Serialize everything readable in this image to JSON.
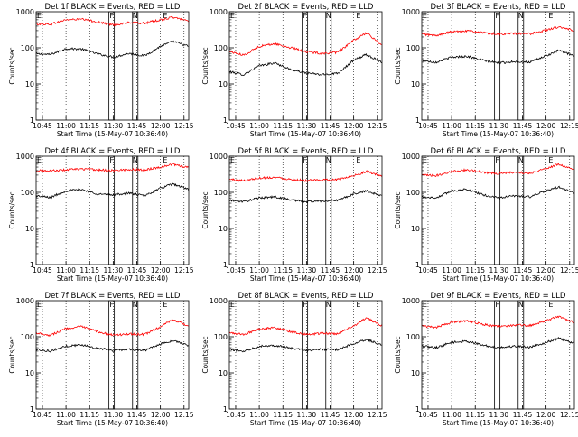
{
  "colors": {
    "events": "#000000",
    "lld": "#ff0000",
    "frame": "#000000",
    "grid": "#000000"
  },
  "chart_data": [
    {
      "type": "line",
      "title": "Det 1f BLACK = Events, RED = LLD",
      "xlabel": "Start Time (15-May-07 10:36:40)",
      "ylabel": "Counts/sec",
      "yscale": "log",
      "ylim": [
        1,
        1000
      ],
      "xlim": [
        "10:41",
        "12:18"
      ],
      "xticks": [
        "10:45",
        "11:00",
        "11:15",
        "11:30",
        "11:45",
        "12:00",
        "12:15"
      ],
      "yticks": [
        "1",
        "10",
        "100",
        "1000"
      ],
      "grid": "dotted vertical",
      "annotations": [
        {
          "label": "E",
          "x": "10:43"
        },
        {
          "label": "F",
          "x": "11:29"
        },
        {
          "label": "N",
          "x": "11:44"
        },
        {
          "label": "E",
          "x": "12:03"
        }
      ],
      "series": [
        {
          "name": "Events",
          "color": "#000000",
          "x": [
            "10:41",
            "10:50",
            "11:00",
            "11:10",
            "11:20",
            "11:30",
            "11:40",
            "11:50",
            "12:00",
            "12:08",
            "12:18"
          ],
          "values": [
            68,
            65,
            95,
            92,
            68,
            55,
            70,
            60,
            110,
            150,
            110
          ]
        },
        {
          "name": "LLD",
          "color": "#ff0000",
          "x": [
            "10:41",
            "10:50",
            "11:00",
            "11:10",
            "11:20",
            "11:30",
            "11:40",
            "11:50",
            "12:00",
            "12:08",
            "12:18"
          ],
          "values": [
            460,
            450,
            600,
            620,
            520,
            430,
            500,
            480,
            600,
            700,
            560
          ]
        }
      ]
    },
    {
      "type": "line",
      "title": "Det 2f BLACK = Events, RED = LLD",
      "xlabel": "Start Time (15-May-07 10:36:40)",
      "ylabel": "Counts/sec",
      "yscale": "log",
      "ylim": [
        1,
        1000
      ],
      "xlim": [
        "10:41",
        "12:18"
      ],
      "xticks": [
        "10:45",
        "11:00",
        "11:15",
        "11:30",
        "11:45",
        "12:00",
        "12:15"
      ],
      "yticks": [
        "1",
        "10",
        "100",
        "1000"
      ],
      "grid": "dotted vertical",
      "annotations": [
        {
          "label": "E",
          "x": "10:43"
        },
        {
          "label": "F",
          "x": "11:29"
        },
        {
          "label": "N",
          "x": "11:44"
        },
        {
          "label": "E",
          "x": "12:03"
        }
      ],
      "series": [
        {
          "name": "Events",
          "color": "#000000",
          "x": [
            "10:41",
            "10:50",
            "11:00",
            "11:10",
            "11:20",
            "11:30",
            "11:40",
            "11:50",
            "12:00",
            "12:08",
            "12:18"
          ],
          "values": [
            22,
            18,
            32,
            38,
            25,
            20,
            18,
            20,
            45,
            65,
            40
          ]
        },
        {
          "name": "LLD",
          "color": "#ff0000",
          "x": [
            "10:41",
            "10:50",
            "11:00",
            "11:10",
            "11:20",
            "11:30",
            "11:40",
            "11:50",
            "12:00",
            "12:08",
            "12:18"
          ],
          "values": [
            80,
            62,
            110,
            130,
            100,
            78,
            70,
            75,
            160,
            260,
            120
          ]
        }
      ]
    },
    {
      "type": "line",
      "title": "Det 3f BLACK = Events, RED = LLD",
      "xlabel": "Start Time (15-May-07 10:36:40)",
      "ylabel": "Counts/sec",
      "yscale": "log",
      "ylim": [
        1,
        1000
      ],
      "xlim": [
        "10:41",
        "12:18"
      ],
      "xticks": [
        "10:45",
        "11:00",
        "11:15",
        "11:30",
        "11:45",
        "12:00",
        "12:15"
      ],
      "yticks": [
        "1",
        "10",
        "100",
        "1000"
      ],
      "grid": "dotted vertical",
      "annotations": [
        {
          "label": "E",
          "x": "10:43"
        },
        {
          "label": "F",
          "x": "11:29"
        },
        {
          "label": "N",
          "x": "11:44"
        },
        {
          "label": "E",
          "x": "12:03"
        }
      ],
      "series": [
        {
          "name": "Events",
          "color": "#000000",
          "x": [
            "10:41",
            "10:50",
            "11:00",
            "11:10",
            "11:20",
            "11:30",
            "11:40",
            "11:50",
            "12:00",
            "12:08",
            "12:18"
          ],
          "values": [
            45,
            40,
            55,
            58,
            45,
            38,
            42,
            40,
            60,
            85,
            60
          ]
        },
        {
          "name": "LLD",
          "color": "#ff0000",
          "x": [
            "10:41",
            "10:50",
            "11:00",
            "11:10",
            "11:20",
            "11:30",
            "11:40",
            "11:50",
            "12:00",
            "12:08",
            "12:18"
          ],
          "values": [
            240,
            220,
            280,
            300,
            260,
            240,
            250,
            245,
            310,
            380,
            300
          ]
        }
      ]
    },
    {
      "type": "line",
      "title": "Det 4f BLACK = Events, RED = LLD",
      "xlabel": "Start Time (15-May-07 10:36:40)",
      "ylabel": "Counts/sec",
      "yscale": "log",
      "ylim": [
        1,
        1000
      ],
      "xlim": [
        "10:41",
        "12:18"
      ],
      "xticks": [
        "10:45",
        "11:00",
        "11:15",
        "11:30",
        "11:45",
        "12:00",
        "12:15"
      ],
      "yticks": [
        "1",
        "10",
        "100",
        "1000"
      ],
      "grid": "dotted vertical",
      "annotations": [
        {
          "label": "E",
          "x": "10:43"
        },
        {
          "label": "F",
          "x": "11:29"
        },
        {
          "label": "N",
          "x": "11:44"
        },
        {
          "label": "E",
          "x": "12:03"
        }
      ],
      "series": [
        {
          "name": "Events",
          "color": "#000000",
          "x": [
            "10:41",
            "10:50",
            "11:00",
            "11:10",
            "11:20",
            "11:30",
            "11:40",
            "11:50",
            "12:00",
            "12:08",
            "12:18"
          ],
          "values": [
            80,
            72,
            110,
            120,
            90,
            85,
            95,
            80,
            130,
            170,
            120
          ]
        },
        {
          "name": "LLD",
          "color": "#ff0000",
          "x": [
            "10:41",
            "10:50",
            "11:00",
            "11:10",
            "11:20",
            "11:30",
            "11:40",
            "11:50",
            "12:00",
            "12:08",
            "12:18"
          ],
          "values": [
            400,
            390,
            420,
            440,
            420,
            400,
            430,
            420,
            500,
            600,
            480
          ]
        }
      ]
    },
    {
      "type": "line",
      "title": "Det 5f BLACK = Events, RED = LLD",
      "xlabel": "Start Time (15-May-07 10:36:40)",
      "ylabel": "Counts/sec",
      "yscale": "log",
      "ylim": [
        1,
        1000
      ],
      "xlim": [
        "10:41",
        "12:18"
      ],
      "xticks": [
        "10:45",
        "11:00",
        "11:15",
        "11:30",
        "11:45",
        "12:00",
        "12:15"
      ],
      "yticks": [
        "1",
        "10",
        "100",
        "1000"
      ],
      "grid": "dotted vertical",
      "annotations": [
        {
          "label": "E",
          "x": "10:43"
        },
        {
          "label": "F",
          "x": "11:29"
        },
        {
          "label": "N",
          "x": "11:44"
        },
        {
          "label": "E",
          "x": "12:03"
        }
      ],
      "series": [
        {
          "name": "Events",
          "color": "#000000",
          "x": [
            "10:41",
            "10:50",
            "11:00",
            "11:10",
            "11:20",
            "11:30",
            "11:40",
            "11:50",
            "12:00",
            "12:08",
            "12:18"
          ],
          "values": [
            60,
            55,
            70,
            75,
            62,
            55,
            58,
            60,
            90,
            110,
            80
          ]
        },
        {
          "name": "LLD",
          "color": "#ff0000",
          "x": [
            "10:41",
            "10:50",
            "11:00",
            "11:10",
            "11:20",
            "11:30",
            "11:40",
            "11:50",
            "12:00",
            "12:08",
            "12:18"
          ],
          "values": [
            230,
            210,
            250,
            260,
            230,
            210,
            220,
            225,
            290,
            380,
            280
          ]
        }
      ]
    },
    {
      "type": "line",
      "title": "Det 6f BLACK = Events, RED = LLD",
      "xlabel": "Start Time (15-May-07 10:36:40)",
      "ylabel": "Counts/sec",
      "yscale": "log",
      "ylim": [
        1,
        1000
      ],
      "xlim": [
        "10:41",
        "12:18"
      ],
      "xticks": [
        "10:45",
        "11:00",
        "11:15",
        "11:30",
        "11:45",
        "12:00",
        "12:15"
      ],
      "yticks": [
        "1",
        "10",
        "100",
        "1000"
      ],
      "grid": "dotted vertical",
      "annotations": [
        {
          "label": "E",
          "x": "10:43"
        },
        {
          "label": "F",
          "x": "11:29"
        },
        {
          "label": "N",
          "x": "11:44"
        },
        {
          "label": "E",
          "x": "12:03"
        }
      ],
      "series": [
        {
          "name": "Events",
          "color": "#000000",
          "x": [
            "10:41",
            "10:50",
            "11:00",
            "11:10",
            "11:20",
            "11:30",
            "11:40",
            "11:50",
            "12:00",
            "12:08",
            "12:18"
          ],
          "values": [
            75,
            70,
            110,
            120,
            85,
            70,
            80,
            75,
            110,
            140,
            95
          ]
        },
        {
          "name": "LLD",
          "color": "#ff0000",
          "x": [
            "10:41",
            "10:50",
            "11:00",
            "11:10",
            "11:20",
            "11:30",
            "11:40",
            "11:50",
            "12:00",
            "12:08",
            "12:18"
          ],
          "values": [
            300,
            290,
            380,
            420,
            360,
            330,
            360,
            340,
            460,
            600,
            420
          ]
        }
      ]
    },
    {
      "type": "line",
      "title": "Det 7f BLACK = Events, RED = LLD",
      "xlabel": "Start Time (15-May-07 10:36:40)",
      "ylabel": "Counts/sec",
      "yscale": "log",
      "ylim": [
        1,
        1000
      ],
      "xlim": [
        "10:41",
        "12:18"
      ],
      "xticks": [
        "10:45",
        "11:00",
        "11:15",
        "11:30",
        "11:45",
        "12:00",
        "12:15"
      ],
      "yticks": [
        "1",
        "10",
        "100",
        "1000"
      ],
      "grid": "dotted vertical",
      "annotations": [
        {
          "label": "E",
          "x": "10:43"
        },
        {
          "label": "F",
          "x": "11:29"
        },
        {
          "label": "N",
          "x": "11:44"
        },
        {
          "label": "E",
          "x": "12:03"
        }
      ],
      "series": [
        {
          "name": "Events",
          "color": "#000000",
          "x": [
            "10:41",
            "10:50",
            "11:00",
            "11:10",
            "11:20",
            "11:30",
            "11:40",
            "11:50",
            "12:00",
            "12:08",
            "12:18"
          ],
          "values": [
            45,
            40,
            55,
            60,
            48,
            42,
            45,
            42,
            62,
            80,
            55
          ]
        },
        {
          "name": "LLD",
          "color": "#ff0000",
          "x": [
            "10:41",
            "10:50",
            "11:00",
            "11:10",
            "11:20",
            "11:30",
            "11:40",
            "11:50",
            "12:00",
            "12:08",
            "12:18"
          ],
          "values": [
            130,
            110,
            170,
            190,
            140,
            110,
            120,
            115,
            190,
            300,
            200
          ]
        }
      ]
    },
    {
      "type": "line",
      "title": "Det 8f BLACK = Events, RED = LLD",
      "xlabel": "Start Time (15-May-07 10:36:40)",
      "ylabel": "Counts/sec",
      "yscale": "log",
      "ylim": [
        1,
        1000
      ],
      "xlim": [
        "10:41",
        "12:18"
      ],
      "xticks": [
        "10:45",
        "11:00",
        "11:15",
        "11:30",
        "11:45",
        "12:00",
        "12:15"
      ],
      "yticks": [
        "1",
        "10",
        "100",
        "1000"
      ],
      "grid": "dotted vertical",
      "annotations": [
        {
          "label": "E",
          "x": "10:43"
        },
        {
          "label": "F",
          "x": "11:29"
        },
        {
          "label": "N",
          "x": "11:44"
        },
        {
          "label": "E",
          "x": "12:03"
        }
      ],
      "series": [
        {
          "name": "Events",
          "color": "#000000",
          "x": [
            "10:41",
            "10:50",
            "11:00",
            "11:10",
            "11:20",
            "11:30",
            "11:40",
            "11:50",
            "12:00",
            "12:08",
            "12:18"
          ],
          "values": [
            45,
            40,
            55,
            58,
            48,
            42,
            45,
            44,
            65,
            85,
            60
          ]
        },
        {
          "name": "LLD",
          "color": "#ff0000",
          "x": [
            "10:41",
            "10:50",
            "11:00",
            "11:10",
            "11:20",
            "11:30",
            "11:40",
            "11:50",
            "12:00",
            "12:08",
            "12:18"
          ],
          "values": [
            130,
            115,
            165,
            180,
            140,
            115,
            125,
            120,
            200,
            330,
            200
          ]
        }
      ]
    },
    {
      "type": "line",
      "title": "Det 9f BLACK = Events, RED = LLD",
      "xlabel": "Start Time (15-May-07 10:36:40)",
      "ylabel": "Counts/sec",
      "yscale": "log",
      "ylim": [
        1,
        1000
      ],
      "xlim": [
        "10:41",
        "12:18"
      ],
      "xticks": [
        "10:45",
        "11:00",
        "11:15",
        "11:30",
        "11:45",
        "12:00",
        "12:15"
      ],
      "yticks": [
        "1",
        "10",
        "100",
        "1000"
      ],
      "grid": "dotted vertical",
      "annotations": [
        {
          "label": "E",
          "x": "10:43"
        },
        {
          "label": "F",
          "x": "11:29"
        },
        {
          "label": "N",
          "x": "11:44"
        },
        {
          "label": "E",
          "x": "12:03"
        }
      ],
      "series": [
        {
          "name": "Events",
          "color": "#000000",
          "x": [
            "10:41",
            "10:50",
            "11:00",
            "11:10",
            "11:20",
            "11:30",
            "11:40",
            "11:50",
            "12:00",
            "12:08",
            "12:18"
          ],
          "values": [
            55,
            50,
            70,
            75,
            58,
            50,
            55,
            52,
            70,
            90,
            65
          ]
        },
        {
          "name": "LLD",
          "color": "#ff0000",
          "x": [
            "10:41",
            "10:50",
            "11:00",
            "11:10",
            "11:20",
            "11:30",
            "11:40",
            "11:50",
            "12:00",
            "12:08",
            "12:18"
          ],
          "values": [
            200,
            180,
            250,
            280,
            220,
            190,
            210,
            205,
            280,
            360,
            250
          ]
        }
      ]
    }
  ]
}
